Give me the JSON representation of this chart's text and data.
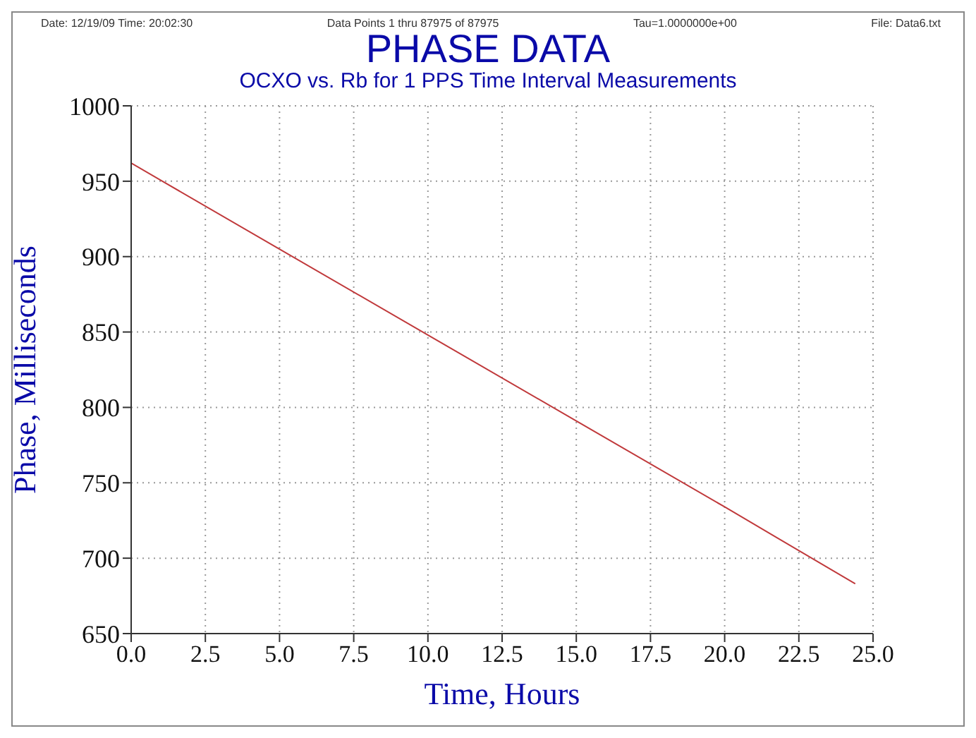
{
  "chart_data": {
    "type": "line",
    "title": "PHASE DATA",
    "subtitle": "OCXO vs. Rb for 1 PPS Time Interval Measurements",
    "xlabel": "Time, Hours",
    "ylabel": "Phase, Milliseconds",
    "annotations": [
      "Date: 12/19/09  Time: 20:02:30",
      "Data Points 1 thru 87975 of 87975",
      "Tau=1.0000000e+00",
      "File: Data6.txt"
    ],
    "series": [
      {
        "color": "#c0393b",
        "x": [
          0,
          5,
          10,
          15,
          20,
          24.4
        ],
        "values": [
          962,
          905,
          848,
          791,
          734,
          683
        ]
      }
    ],
    "xlim": [
      0,
      25
    ],
    "xticks": [
      {
        "value": 0,
        "label": "0.0"
      },
      {
        "value": 2.5,
        "label": "2.5"
      },
      {
        "value": 5,
        "label": "5.0"
      },
      {
        "value": 7.5,
        "label": "7.5"
      },
      {
        "value": 10,
        "label": "10.0"
      },
      {
        "value": 12.5,
        "label": "12.5"
      },
      {
        "value": 15,
        "label": "15.0"
      },
      {
        "value": 17.5,
        "label": "17.5"
      },
      {
        "value": 20,
        "label": "20.0"
      },
      {
        "value": 22.5,
        "label": "22.5"
      },
      {
        "value": 25,
        "label": "25.0"
      }
    ],
    "ylim": [
      650,
      1000
    ],
    "yticks": [
      650,
      700,
      750,
      800,
      850,
      900,
      950,
      1000
    ],
    "grid": true,
    "marker": "none",
    "line_style": "solid"
  }
}
